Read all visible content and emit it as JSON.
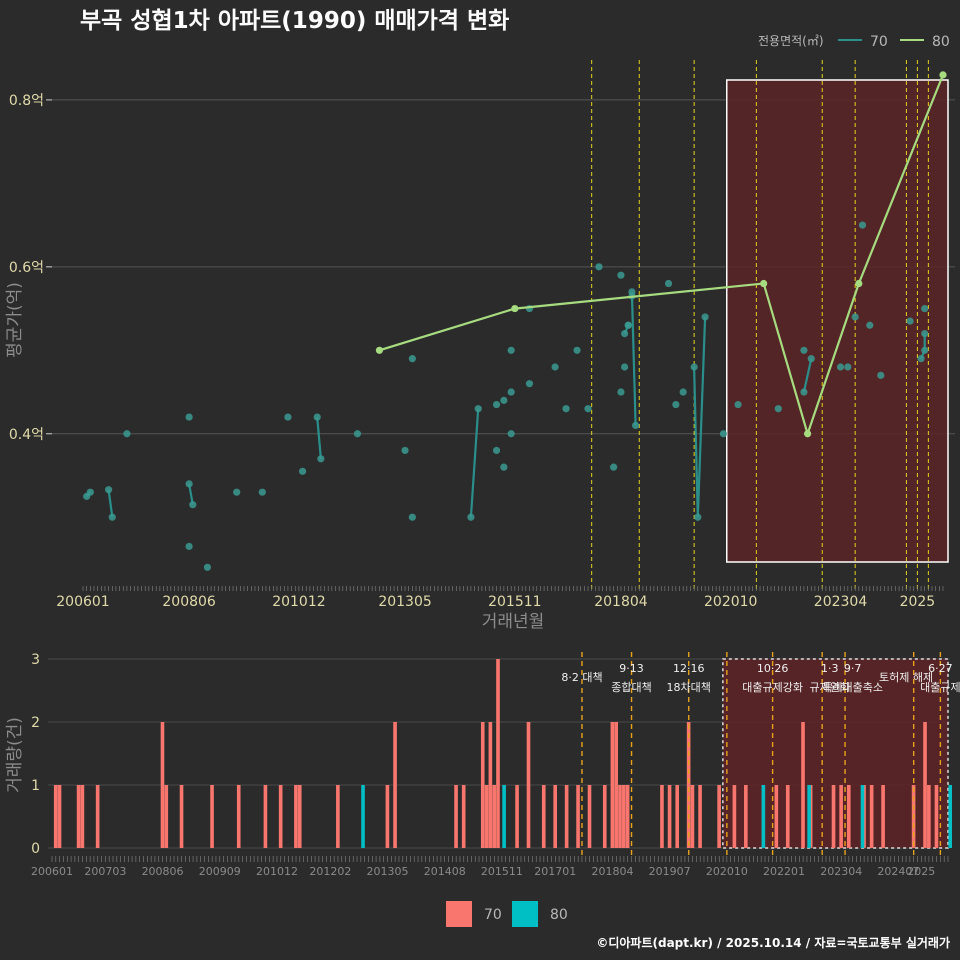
{
  "title": "부곡 성협1차 아파트(1990) 매매가격 변화",
  "caption": "©디아파트(dapt.kr) / 2025.10.14 / 자료=국토교통부 실거래가",
  "colors": {
    "s70_line": "#2a8f8b",
    "s70_point": "#3a9a92",
    "s80": "#a6dc7f",
    "bar70": "#f8766d",
    "bar80": "#00bfc4",
    "policy": "#e7d21a",
    "highlight_fill": "#5b2426",
    "highlight_stroke": "#ffffff",
    "grid": "#555555"
  },
  "chart_data": [
    {
      "type": "line",
      "title": "부곡 성협1차 아파트(1990) 매매가격 변화",
      "xlabel": "거래년월",
      "ylabel": "평균가(억)",
      "ylim": [
        0.22,
        0.855
      ],
      "x_range": [
        "2006-01",
        "2025-06"
      ],
      "x_ticks": [
        "200601",
        "200806",
        "201012",
        "201305",
        "201511",
        "201804",
        "202010",
        "202304",
        "2025"
      ],
      "y_ticks": [
        0.4,
        0.6,
        0.8
      ],
      "y_tick_labels": [
        "0.4억",
        "0.6억",
        "0.8억"
      ],
      "legend_title": "전용면적(㎡)",
      "legend": [
        "70",
        "80"
      ],
      "policy_lines": [
        "2017-08",
        "2018-09",
        "2019-12",
        "2020-10",
        "2022-11",
        "2023-11",
        "2024-07",
        "2025-04",
        "2025-07",
        "2021-04"
      ],
      "highlight": [
        "2020-10",
        "2025-08"
      ],
      "series": [
        {
          "name": "70",
          "segments": [
            [
              [
                "2006-02",
                0.325
              ],
              [
                "2006-03",
                0.33
              ]
            ],
            [
              [
                "2006-08",
                0.333
              ],
              [
                "2006-09",
                0.3
              ]
            ],
            [
              [
                "2007-01",
                0.4
              ]
            ],
            [
              [
                "2008-06",
                0.34
              ],
              [
                "2008-07",
                0.315
              ]
            ],
            [
              [
                "2008-06",
                0.42
              ]
            ],
            [
              [
                "2008-06",
                0.265
              ]
            ],
            [
              [
                "2008-11",
                0.24
              ]
            ],
            [
              [
                "2009-07",
                0.33
              ]
            ],
            [
              [
                "2010-02",
                0.33
              ]
            ],
            [
              [
                "2010-09",
                0.42
              ]
            ],
            [
              [
                "2011-01",
                0.355
              ]
            ],
            [
              [
                "2011-05",
                0.42
              ],
              [
                "2011-06",
                0.37
              ]
            ],
            [
              [
                "2012-04",
                0.4
              ]
            ],
            [
              [
                "2013-05",
                0.38
              ]
            ],
            [
              [
                "2013-07",
                0.49
              ]
            ],
            [
              [
                "2013-07",
                0.3
              ]
            ],
            [
              [
                "2014-11",
                0.3
              ],
              [
                "2015-01",
                0.43
              ]
            ],
            [
              [
                "2015-06",
                0.38
              ]
            ],
            [
              [
                "2015-06",
                0.435
              ]
            ],
            [
              [
                "2015-08",
                0.44
              ]
            ],
            [
              [
                "2015-08",
                0.36
              ]
            ],
            [
              [
                "2015-10",
                0.45
              ]
            ],
            [
              [
                "2015-10",
                0.5
              ]
            ],
            [
              [
                "2015-10",
                0.4
              ]
            ],
            [
              [
                "2016-03",
                0.55
              ]
            ],
            [
              [
                "2016-03",
                0.46
              ]
            ],
            [
              [
                "2016-10",
                0.48
              ]
            ],
            [
              [
                "2017-01",
                0.43
              ]
            ],
            [
              [
                "2017-04",
                0.5
              ]
            ],
            [
              [
                "2017-07",
                0.43
              ]
            ],
            [
              [
                "2017-10",
                0.6
              ]
            ],
            [
              [
                "2018-02",
                0.36
              ]
            ],
            [
              [
                "2018-04",
                0.59
              ]
            ],
            [
              [
                "2018-04",
                0.45
              ]
            ],
            [
              [
                "2018-05",
                0.48
              ]
            ],
            [
              [
                "2018-05",
                0.52
              ],
              [
                "2018-06",
                0.53
              ]
            ],
            [
              [
                "2018-07",
                0.565
              ],
              [
                "2018-07",
                0.57
              ],
              [
                "2018-08",
                0.41
              ]
            ],
            [
              [
                "2018-06",
                0.53
              ]
            ],
            [
              [
                "2019-05",
                0.58
              ]
            ],
            [
              [
                "2019-07",
                0.435
              ]
            ],
            [
              [
                "2019-09",
                0.45
              ]
            ],
            [
              [
                "2019-12",
                0.48
              ],
              [
                "2020-01",
                0.3
              ],
              [
                "2020-03",
                0.54
              ]
            ],
            [
              [
                "2020-08",
                0.4
              ]
            ],
            [
              [
                "2020-12",
                0.435
              ]
            ],
            [
              [
                "2021-11",
                0.43
              ]
            ],
            [
              [
                "2022-06",
                0.5
              ]
            ],
            [
              [
                "2022-06",
                0.45
              ],
              [
                "2022-08",
                0.49
              ]
            ],
            [
              [
                "2023-04",
                0.48
              ]
            ],
            [
              [
                "2023-06",
                0.48
              ]
            ],
            [
              [
                "2023-10",
                0.65
              ]
            ],
            [
              [
                "2023-08",
                0.54
              ]
            ],
            [
              [
                "2023-12",
                0.53
              ]
            ],
            [
              [
                "2024-03",
                0.47
              ]
            ],
            [
              [
                "2024-11",
                0.535
              ]
            ],
            [
              [
                "2025-02",
                0.49
              ],
              [
                "2025-03",
                0.5
              ],
              [
                "2025-03",
                0.52
              ]
            ],
            [
              [
                "2025-03",
                0.55
              ]
            ]
          ]
        },
        {
          "name": "80",
          "points": [
            [
              "2012-10",
              0.5
            ],
            [
              "2015-11",
              0.55
            ],
            [
              "2021-07",
              0.58
            ],
            [
              "2022-07",
              0.4
            ],
            [
              "2023-09",
              0.58
            ],
            [
              "2025-08",
              0.83
            ]
          ]
        }
      ]
    },
    {
      "type": "bar",
      "ylabel": "거래량(건)",
      "ylim": [
        0,
        3
      ],
      "y_ticks": [
        0,
        1,
        2,
        3
      ],
      "x_ticks": [
        "200601",
        "200703",
        "200806",
        "200909",
        "201012",
        "201202",
        "201305",
        "201408",
        "201511",
        "201701",
        "201804",
        "201907",
        "202010",
        "202201",
        "202304",
        "202407",
        "2025"
      ],
      "legend": [
        "70",
        "80"
      ],
      "policy_lines": [
        "2017-08",
        "2018-09",
        "2019-12",
        "2020-10",
        "2021-10",
        "2022-11",
        "2023-05",
        "2024-11",
        "2025-06"
      ],
      "annotations": [
        {
          "date": "2017-08",
          "line1": "",
          "line2": "8·2 대책"
        },
        {
          "date": "2018-09",
          "line1": "9·13",
          "line2": "종합대책"
        },
        {
          "date": "2019-12",
          "line1": "12·16",
          "line2": "18차대책"
        },
        {
          "date": "2021-10",
          "line1": "10·26",
          "line2": "대출규제강화"
        },
        {
          "date": "2023-01",
          "line1": "1·3",
          "line2": "규제완화"
        },
        {
          "date": "2023-07",
          "line1": "9·7",
          "line2": "특례대출축소"
        },
        {
          "date": "2024-09",
          "line1": "",
          "line2": "토허제 해제"
        },
        {
          "date": "2025-06",
          "line1": "6·27",
          "line2": "대출규제"
        }
      ],
      "series": [
        {
          "name": "70",
          "bars": [
            [
              "2006-02",
              1
            ],
            [
              "2006-03",
              1
            ],
            [
              "2006-08",
              1
            ],
            [
              "2006-09",
              1
            ],
            [
              "2007-01",
              1
            ],
            [
              "2008-06",
              2
            ],
            [
              "2008-07",
              1
            ],
            [
              "2008-11",
              1
            ],
            [
              "2009-07",
              1
            ],
            [
              "2010-02",
              1
            ],
            [
              "2010-09",
              1
            ],
            [
              "2011-01",
              1
            ],
            [
              "2011-05",
              1
            ],
            [
              "2011-06",
              1
            ],
            [
              "2012-04",
              1
            ],
            [
              "2013-05",
              1
            ],
            [
              "2013-07",
              2
            ],
            [
              "2014-11",
              1
            ],
            [
              "2015-01",
              1
            ],
            [
              "2015-06",
              2
            ],
            [
              "2015-07",
              1
            ],
            [
              "2015-08",
              2
            ],
            [
              "2015-09",
              1
            ],
            [
              "2015-10",
              3
            ],
            [
              "2016-03",
              1
            ],
            [
              "2016-06",
              2
            ],
            [
              "2016-10",
              1
            ],
            [
              "2017-01",
              1
            ],
            [
              "2017-04",
              1
            ],
            [
              "2017-07",
              1
            ],
            [
              "2017-10",
              1
            ],
            [
              "2018-02",
              1
            ],
            [
              "2018-04",
              2
            ],
            [
              "2018-05",
              2
            ],
            [
              "2018-06",
              1
            ],
            [
              "2018-07",
              1
            ],
            [
              "2018-08",
              1
            ],
            [
              "2019-05",
              1
            ],
            [
              "2019-07",
              1
            ],
            [
              "2019-09",
              1
            ],
            [
              "2019-12",
              2
            ],
            [
              "2020-01",
              1
            ],
            [
              "2020-03",
              1
            ],
            [
              "2020-08",
              1
            ],
            [
              "2020-12",
              1
            ],
            [
              "2021-03",
              1
            ],
            [
              "2021-11",
              1
            ],
            [
              "2022-02",
              1
            ],
            [
              "2022-06",
              2
            ],
            [
              "2022-08",
              1
            ],
            [
              "2023-02",
              1
            ],
            [
              "2023-04",
              1
            ],
            [
              "2023-06",
              1
            ],
            [
              "2023-10",
              1
            ],
            [
              "2023-12",
              1
            ],
            [
              "2024-03",
              1
            ],
            [
              "2024-11",
              1
            ],
            [
              "2025-02",
              2
            ],
            [
              "2025-03",
              1
            ],
            [
              "2025-05",
              1
            ]
          ]
        },
        {
          "name": "80",
          "bars": [
            [
              "2012-10",
              1
            ],
            [
              "2015-11",
              1
            ],
            [
              "2021-07",
              1
            ],
            [
              "2022-07",
              1
            ],
            [
              "2023-09",
              1
            ],
            [
              "2025-08",
              1
            ]
          ]
        }
      ]
    }
  ]
}
